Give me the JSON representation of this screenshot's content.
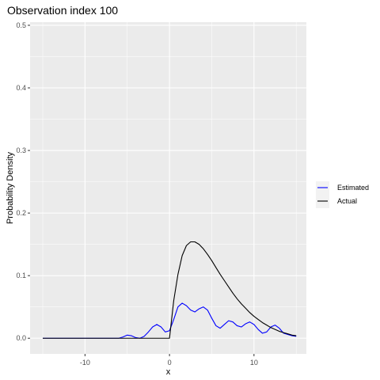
{
  "chart_data": {
    "type": "line",
    "title": "Observation index 100",
    "xlabel": "x",
    "ylabel": "Probability Density",
    "xlim": [
      -16.5,
      16.2
    ],
    "ylim": [
      -0.025,
      0.505
    ],
    "x_ticks": [
      -10,
      0,
      10
    ],
    "x_tick_labels": [
      "-10",
      "0",
      "10"
    ],
    "x_minor_ticks": [
      -15,
      -5,
      5,
      15
    ],
    "y_ticks": [
      0.0,
      0.1,
      0.2,
      0.3,
      0.4,
      0.5
    ],
    "y_tick_labels": [
      "0.0",
      "0.1",
      "0.2",
      "0.3",
      "0.4",
      "0.5"
    ],
    "y_minor_ticks": [
      0.05,
      0.15,
      0.25,
      0.35,
      0.45
    ],
    "grid": true,
    "panel_background": "#ebebeb",
    "grid_color": "#ffffff",
    "legend_position": "right",
    "series": [
      {
        "name": "Estimated",
        "color": "#0000ff",
        "x": [
          -15,
          -10,
          -6,
          -5.5,
          -5,
          -4.5,
          -4,
          -3.5,
          -3,
          -2.5,
          -2,
          -1.5,
          -1,
          -0.5,
          0,
          0.5,
          1,
          1.5,
          2,
          2.5,
          3,
          3.5,
          4,
          4.5,
          5,
          5.5,
          6,
          6.5,
          7,
          7.5,
          8,
          8.5,
          9,
          9.5,
          10,
          10.5,
          11,
          11.5,
          12,
          12.5,
          13,
          13.5,
          14,
          14.5,
          15
        ],
        "y": [
          0,
          0,
          0,
          0.002,
          0.005,
          0.004,
          0.001,
          0,
          0.003,
          0.01,
          0.018,
          0.022,
          0.018,
          0.01,
          0.012,
          0.03,
          0.05,
          0.056,
          0.052,
          0.045,
          0.042,
          0.047,
          0.05,
          0.045,
          0.032,
          0.02,
          0.016,
          0.022,
          0.028,
          0.026,
          0.02,
          0.018,
          0.023,
          0.026,
          0.022,
          0.014,
          0.008,
          0.01,
          0.018,
          0.021,
          0.016,
          0.008,
          0.006,
          0.004,
          0.003
        ]
      },
      {
        "name": "Actual",
        "color": "#000000",
        "x": [
          -15,
          -10,
          -5,
          0,
          0.5,
          1,
          1.5,
          2,
          2.5,
          3,
          3.5,
          4,
          4.5,
          5,
          5.5,
          6,
          6.5,
          7,
          7.5,
          8,
          8.5,
          9,
          9.5,
          10,
          10.5,
          11,
          11.5,
          12,
          12.5,
          13,
          13.5,
          14,
          14.5,
          15
        ],
        "y": [
          0,
          0,
          0,
          0,
          0.06,
          0.102,
          0.132,
          0.148,
          0.154,
          0.154,
          0.15,
          0.143,
          0.134,
          0.124,
          0.113,
          0.102,
          0.092,
          0.082,
          0.072,
          0.063,
          0.055,
          0.048,
          0.041,
          0.035,
          0.03,
          0.025,
          0.021,
          0.017,
          0.014,
          0.011,
          0.009,
          0.007,
          0.005,
          0.004
        ]
      }
    ]
  }
}
